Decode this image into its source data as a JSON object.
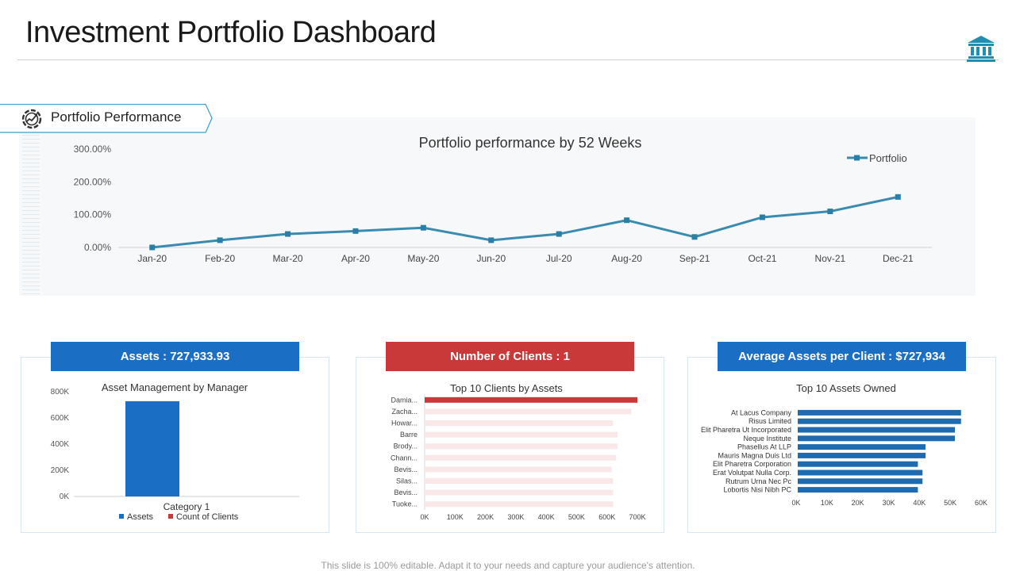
{
  "header": {
    "title": "Investment Portfolio Dashboard",
    "icon": "bank-icon"
  },
  "section": {
    "label": "Portfolio Performance",
    "icon": "performance-gauge-icon"
  },
  "colors": {
    "line": "#3a8bb0",
    "blue": "#1a6fc4",
    "red": "#c9393a",
    "bar_blue": "#1f6bb0",
    "client_track": "#fae8e8"
  },
  "cards": {
    "assets": {
      "label": "Assets : 727,933.93"
    },
    "clients": {
      "label": "Number of Clients :  1"
    },
    "average": {
      "label": "Average Assets per Client : $727,934"
    }
  },
  "footer": {
    "note": "This slide is 100% editable. Adapt it to your needs and capture your audience's attention."
  },
  "chart_data": [
    {
      "id": "performance",
      "type": "line",
      "title": "Portfolio performance by 52 Weeks",
      "categories": [
        "Jan-20",
        "Feb-20",
        "Mar-20",
        "Apr-20",
        "May-20",
        "Jun-20",
        "Jul-20",
        "Aug-20",
        "Sep-21",
        "Oct-21",
        "Nov-21",
        "Dec-21"
      ],
      "series": [
        {
          "name": "Portfolio",
          "values": [
            0,
            22,
            41,
            50,
            60,
            22,
            41,
            83,
            32,
            92,
            110,
            154
          ]
        }
      ],
      "yticks": [
        "0.00%",
        "100.00%",
        "200.00%",
        "300.00%"
      ],
      "ylim": [
        0,
        300
      ],
      "legend": "top-right"
    },
    {
      "id": "asset-management",
      "type": "bar",
      "title": "Asset Management  by Manager",
      "categories": [
        "Category 1"
      ],
      "series": [
        {
          "name": "Assets",
          "values": [
            727934
          ]
        },
        {
          "name": "Count of  Clients",
          "values": [
            1
          ]
        }
      ],
      "yticks": [
        "0K",
        "200K",
        "400K",
        "600K",
        "800K"
      ],
      "ylim": [
        0,
        800000
      ],
      "legend": "bottom"
    },
    {
      "id": "top-clients",
      "type": "bar",
      "orientation": "horizontal",
      "title": "Top  10 Clients  by Assets",
      "categories": [
        "Damia...",
        "Zacha...",
        "Howar...",
        "Barre",
        "Brody...",
        "Chann...",
        "Bevis...",
        "Silas...",
        "Bevis...",
        "Tuoke..."
      ],
      "values": [
        700000,
        680000,
        620000,
        635000,
        635000,
        630000,
        615000,
        620000,
        620000,
        620000
      ],
      "xticks": [
        "0K",
        "100K",
        "200K",
        "300K",
        "400K",
        "500K",
        "600K",
        "700K"
      ],
      "xlim": [
        0,
        700000
      ]
    },
    {
      "id": "top-assets",
      "type": "bar",
      "orientation": "horizontal",
      "title": "Top  10 Assets Owned",
      "categories": [
        "At Lacus Company",
        "Risus Limited",
        "Elit Pharetra Ut Incorporated",
        "Neque Institute",
        "Phasellus At LLP",
        "Mauris Magna Duis Ltd",
        "Elit Pharetra Corporation",
        "Erat Volutpat Nulla Corp.",
        "Rutrum Urna Nec Pc",
        "Lobortis Nisi Nibh PC"
      ],
      "values": [
        53500,
        53500,
        51500,
        51500,
        42000,
        42000,
        39500,
        41000,
        41000,
        39500
      ],
      "xticks": [
        "0K",
        "10K",
        "20K",
        "30K",
        "40K",
        "50K",
        "60K"
      ],
      "xlim": [
        0,
        60000
      ]
    }
  ]
}
